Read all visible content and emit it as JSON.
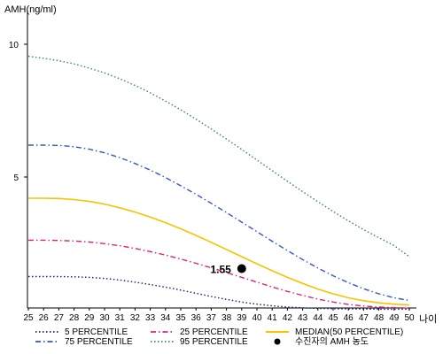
{
  "chart_data": {
    "type": "line",
    "ylabel": "AMH(ng/ml)",
    "xlabel": "나이",
    "x": [
      25,
      26,
      27,
      28,
      29,
      30,
      31,
      32,
      33,
      34,
      35,
      36,
      37,
      38,
      39,
      40,
      41,
      42,
      43,
      44,
      45,
      46,
      47,
      48,
      49,
      50
    ],
    "x_tick_labels": [
      "25",
      "26",
      "27",
      "28",
      "29",
      "30",
      "31",
      "32",
      "33",
      "34",
      "35",
      "36",
      "37",
      "38",
      "39",
      "40",
      "41",
      "42",
      "43",
      "44",
      "45",
      "46",
      "47",
      "48",
      "49",
      "50"
    ],
    "y_tick_labels": [
      "5",
      "10"
    ],
    "xlim": [
      25,
      50
    ],
    "ylim": [
      0,
      11
    ],
    "series": [
      {
        "name": "5 PERCENTILE",
        "color": "#1a1a7a",
        "dash": "dot",
        "values": [
          1.25,
          1.25,
          1.25,
          1.24,
          1.22,
          1.18,
          1.12,
          1.04,
          0.95,
          0.85,
          0.74,
          0.62,
          0.5,
          0.39,
          0.29,
          0.21,
          0.15,
          0.1,
          0.07,
          0.05,
          0.04,
          0.03,
          0.03,
          0.02,
          0.02,
          0.02
        ]
      },
      {
        "name": "25 PERCENTILE",
        "color": "#e0207a",
        "dash": "dashdot",
        "values": [
          2.62,
          2.62,
          2.61,
          2.59,
          2.55,
          2.49,
          2.41,
          2.31,
          2.19,
          2.06,
          1.91,
          1.75,
          1.58,
          1.4,
          1.22,
          1.04,
          0.86,
          0.69,
          0.54,
          0.4,
          0.29,
          0.2,
          0.14,
          0.1,
          0.08,
          0.06
        ]
      },
      {
        "name": "MEDIAN(50 PERCENTILE)",
        "color": "#f2c500",
        "dash": "solid",
        "values": [
          4.2,
          4.2,
          4.19,
          4.15,
          4.08,
          3.98,
          3.84,
          3.68,
          3.49,
          3.28,
          3.05,
          2.8,
          2.54,
          2.27,
          2.0,
          1.73,
          1.47,
          1.22,
          0.99,
          0.78,
          0.6,
          0.45,
          0.34,
          0.26,
          0.21,
          0.18
        ]
      },
      {
        "name": "75 PERCENTILE",
        "color": "#3355cc",
        "dash": "dashdot",
        "values": [
          6.2,
          6.2,
          6.19,
          6.14,
          6.05,
          5.91,
          5.73,
          5.51,
          5.26,
          4.98,
          4.67,
          4.35,
          4.01,
          3.66,
          3.3,
          2.94,
          2.58,
          2.23,
          1.89,
          1.57,
          1.28,
          1.02,
          0.79,
          0.6,
          0.45,
          0.35
        ]
      },
      {
        "name": "95 PERCENTILE",
        "color": "#2e8b57",
        "dash": "dot",
        "values": [
          9.55,
          9.47,
          9.38,
          9.26,
          9.1,
          8.92,
          8.7,
          8.45,
          8.17,
          7.86,
          7.53,
          7.18,
          6.81,
          6.43,
          6.04,
          5.64,
          5.24,
          4.84,
          4.45,
          4.07,
          3.7,
          3.35,
          3.02,
          2.71,
          2.42,
          2.0
        ]
      }
    ],
    "point": {
      "name": "수진자의 AMH 농도",
      "x": 39,
      "y": 1.55,
      "label": "1.55"
    },
    "legend_placement": "bottom",
    "grid": false
  }
}
